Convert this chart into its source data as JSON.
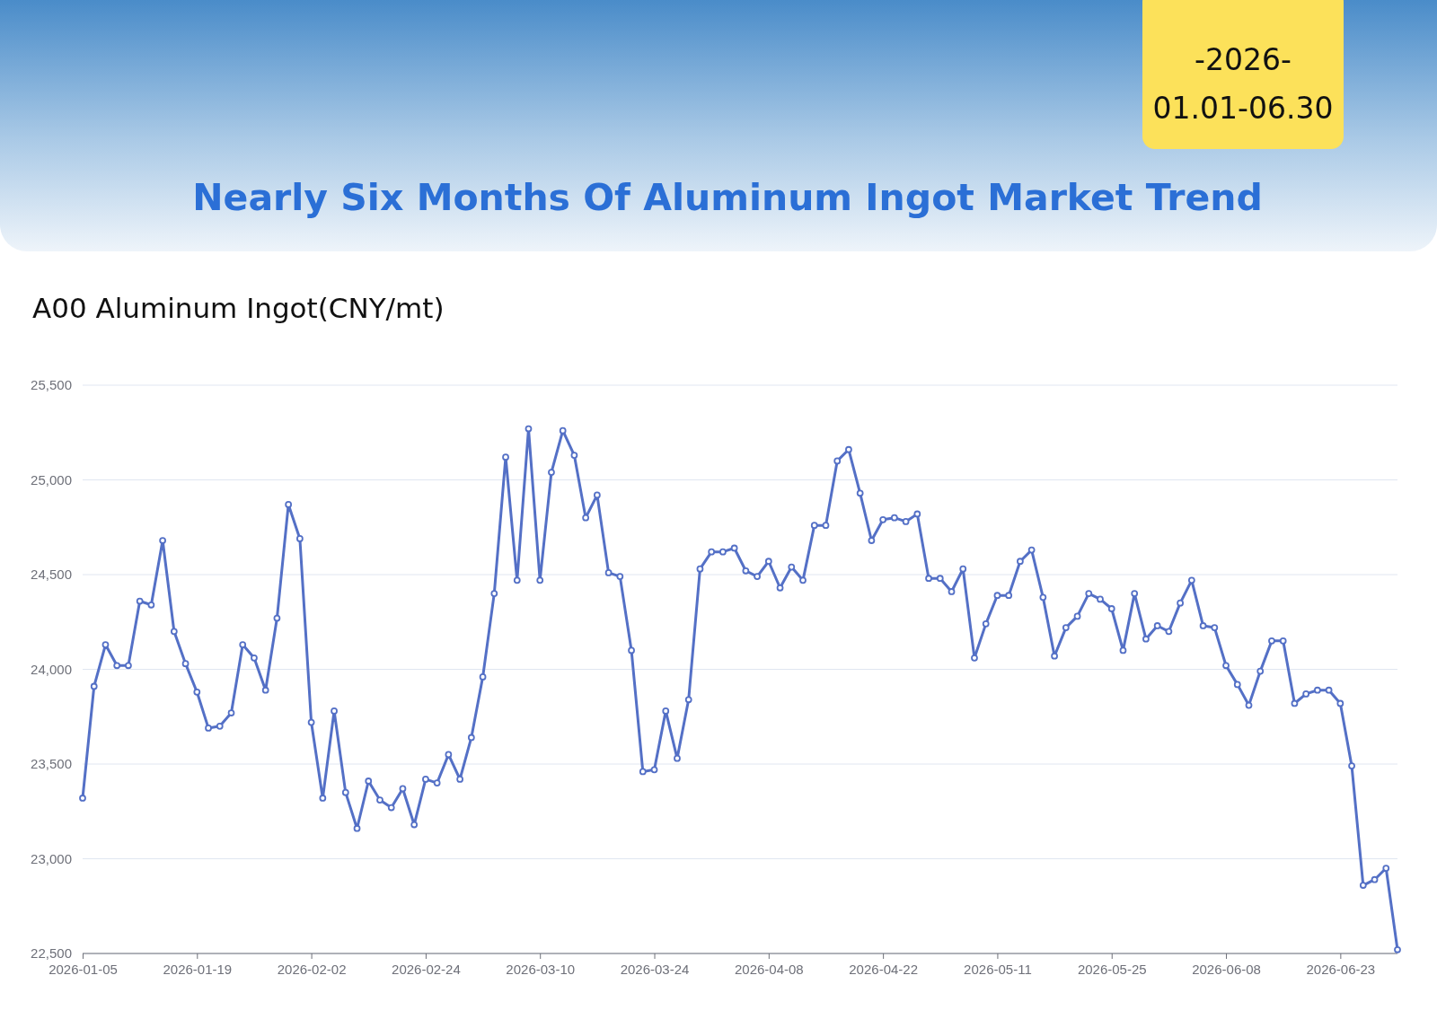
{
  "chart_data": {
    "type": "line",
    "title": "Nearly Six Months Of Aluminum Ingot Market Trend",
    "subtitle": "A00 Aluminum Ingot(CNY/mt)",
    "annotations": [
      "-2026-",
      "01.01-06.30"
    ],
    "categories": [
      "2026-01-05",
      null,
      null,
      null,
      null,
      null,
      null,
      null,
      null,
      null,
      "2026-01-19",
      null,
      null,
      null,
      null,
      null,
      null,
      null,
      null,
      null,
      "2026-02-02",
      null,
      null,
      null,
      null,
      null,
      null,
      null,
      null,
      null,
      "2026-02-24",
      null,
      null,
      null,
      null,
      null,
      null,
      null,
      null,
      null,
      "2026-03-10",
      null,
      null,
      null,
      null,
      null,
      null,
      null,
      null,
      null,
      "2026-03-24",
      null,
      null,
      null,
      null,
      null,
      null,
      null,
      null,
      null,
      "2026-04-08",
      null,
      null,
      null,
      null,
      null,
      null,
      null,
      null,
      null,
      "2026-04-22",
      null,
      null,
      null,
      null,
      null,
      null,
      null,
      null,
      null,
      "2026-05-11",
      null,
      null,
      null,
      null,
      null,
      null,
      null,
      null,
      null,
      "2026-05-25",
      null,
      null,
      null,
      null,
      null,
      null,
      null,
      null,
      null,
      "2026-06-08",
      null,
      null,
      null,
      null,
      null,
      null,
      null,
      null,
      null,
      "2026-06-23",
      null,
      null,
      null,
      null,
      null
    ],
    "series": [
      {
        "color": "#5470c6",
        "values": [
          23320,
          23910,
          24130,
          24020,
          24020,
          24360,
          24340,
          24680,
          24200,
          24030,
          23880,
          23690,
          23700,
          23770,
          24130,
          24060,
          23890,
          24270,
          24870,
          24690,
          23720,
          23320,
          23780,
          23350,
          23160,
          23410,
          23310,
          23270,
          23370,
          23180,
          23420,
          23400,
          23550,
          23420,
          23640,
          23960,
          24400,
          25120,
          24470,
          25270,
          24470,
          25040,
          25260,
          25130,
          24800,
          24920,
          24510,
          24490,
          24100,
          23460,
          23470,
          23780,
          23530,
          23840,
          24530,
          24620,
          24620,
          24640,
          24520,
          24490,
          24570,
          24430,
          24540,
          24470,
          24760,
          24760,
          25100,
          25160,
          24930,
          24680,
          24790,
          24800,
          24780,
          24820,
          24480,
          24480,
          24410,
          24530,
          24060,
          24240,
          24390,
          24390,
          24570,
          24630,
          24380,
          24070,
          24220,
          24280,
          24400,
          24370,
          24320,
          24100,
          24400,
          24160,
          24230,
          24200,
          24350,
          24470,
          24230,
          24220,
          24020,
          23920,
          23810,
          23990,
          24150,
          24150,
          23820,
          23870,
          23890,
          23890,
          23820,
          23490,
          22860,
          22890,
          22950,
          22520
        ]
      }
    ],
    "ylim": [
      22500,
      25500
    ],
    "yticks": [
      {
        "value": 22500,
        "label": "22,500"
      },
      {
        "value": 23000,
        "label": "23,000"
      },
      {
        "value": 23500,
        "label": "23,500"
      },
      {
        "value": 24000,
        "label": "24,000"
      },
      {
        "value": 24500,
        "label": "24,500"
      },
      {
        "value": 25000,
        "label": "25,000"
      },
      {
        "value": 25500,
        "label": "25,500"
      }
    ],
    "grid": "y",
    "marker": "circle",
    "line_style": "solid"
  }
}
